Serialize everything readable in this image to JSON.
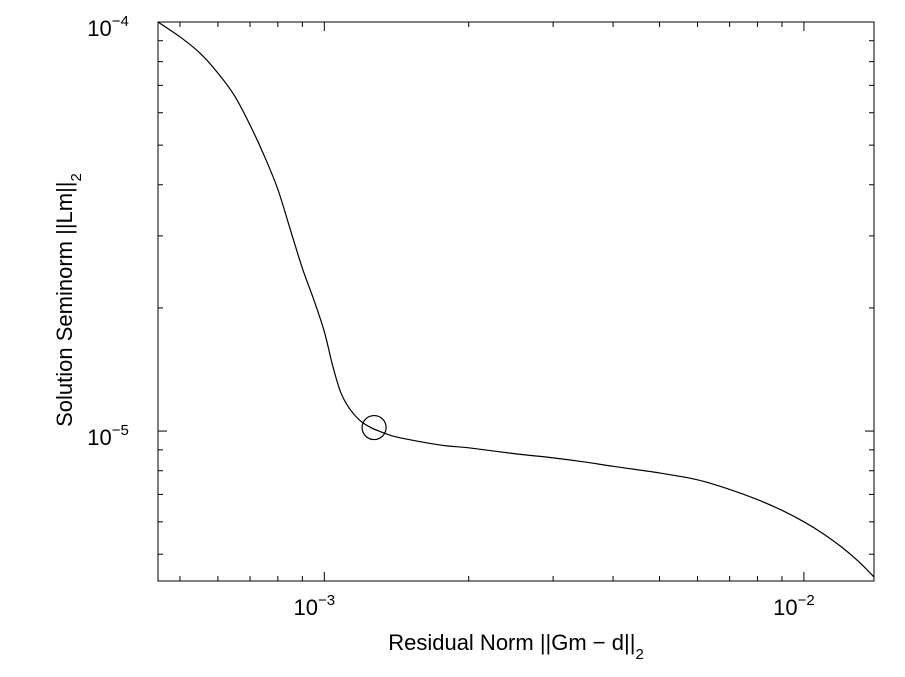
{
  "chart_data": {
    "type": "line",
    "title": "",
    "xlabel": "Residual Norm ||Gm − d||",
    "xlabel_subscript": "2",
    "ylabel": "Solution Seminorm ||Lm||",
    "ylabel_subscript": "2",
    "xscale": "log",
    "yscale": "log",
    "xlim": [
      0.00045,
      0.014
    ],
    "ylim": [
      4.3e-06,
      0.0001
    ],
    "grid": false,
    "legend": "none",
    "x_ticks": [
      {
        "value": 0.001,
        "base": "10",
        "exp": "−3"
      },
      {
        "value": 0.01,
        "base": "10",
        "exp": "−2"
      }
    ],
    "y_ticks": [
      {
        "value": 1e-05,
        "base": "10",
        "exp": "−5"
      },
      {
        "value": 0.0001,
        "base": "10",
        "exp": "−4"
      }
    ],
    "series": [
      {
        "color": "#000000",
        "x": [
          0.00045,
          0.0005,
          0.00055,
          0.0006,
          0.00065,
          0.0007,
          0.00075,
          0.0008,
          0.00085,
          0.0009,
          0.00095,
          0.001,
          0.00104,
          0.00108,
          0.00112,
          0.00116,
          0.0012,
          0.00125,
          0.0013,
          0.0014,
          0.0016,
          0.0018,
          0.002,
          0.0025,
          0.003,
          0.0035,
          0.004,
          0.005,
          0.006,
          0.007,
          0.008,
          0.009,
          0.01,
          0.011,
          0.012,
          0.013,
          0.014
        ],
        "y": [
          0.0001,
          9.2e-05,
          8.4e-05,
          7.5e-05,
          6.6e-05,
          5.6e-05,
          4.7e-05,
          3.9e-05,
          3.1e-05,
          2.5e-05,
          2.1e-05,
          1.75e-05,
          1.45e-05,
          1.25e-05,
          1.15e-05,
          1.09e-05,
          1.05e-05,
          1.02e-05,
          1e-05,
          9.7e-06,
          9.4e-06,
          9.2e-06,
          9.1e-06,
          8.8e-06,
          8.6e-06,
          8.4e-06,
          8.2e-06,
          7.9e-06,
          7.6e-06,
          7.2e-06,
          6.8e-06,
          6.4e-06,
          6e-06,
          5.6e-06,
          5.2e-06,
          4.8e-06,
          4.4e-06
        ]
      }
    ],
    "annotations": [
      {
        "type": "circle-marker",
        "x": 0.00127,
        "y": 1.02e-05
      }
    ]
  }
}
